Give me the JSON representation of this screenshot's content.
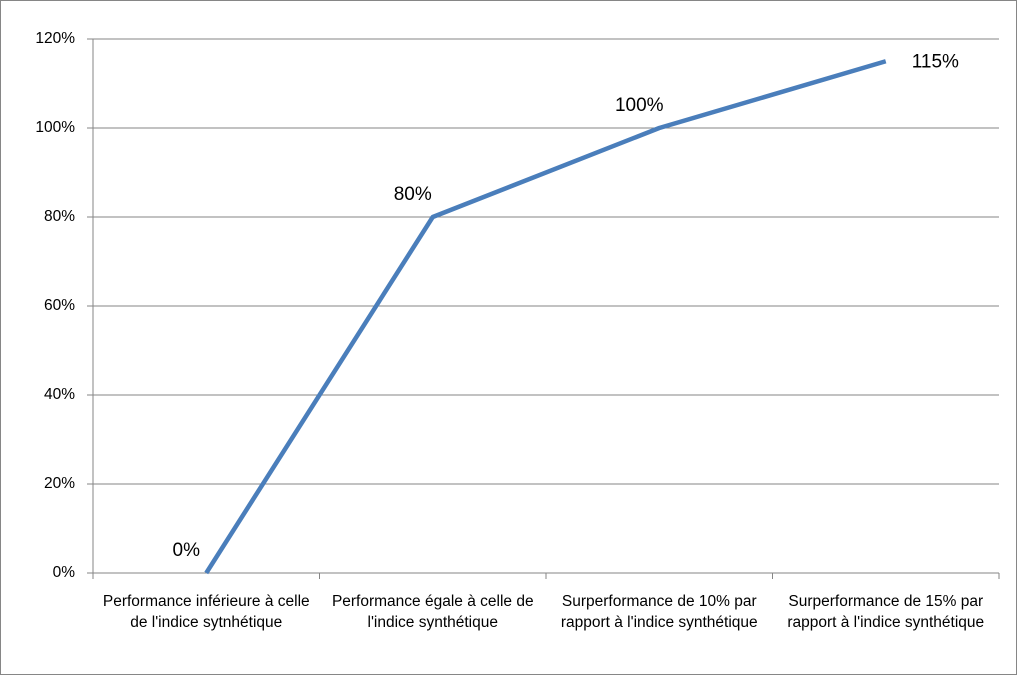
{
  "chart_data": {
    "type": "line",
    "categories": [
      "Performance inférieure à celle de l'indice sytnhétique",
      "Performance égale à celle de l'indice synthétique",
      "Surperformance de 10% par rapport à l'indice synthétique",
      "Surperformance de 15% par rapport à l'indice synthétique"
    ],
    "values": [
      0,
      80,
      100,
      115
    ],
    "value_labels": [
      "0%",
      "80%",
      "100%",
      "115%"
    ],
    "color": "#4a7ebb",
    "ylim": [
      0,
      120
    ],
    "yticks": [
      {
        "value": 0,
        "label": "0%"
      },
      {
        "value": 20,
        "label": "20%"
      },
      {
        "value": 40,
        "label": "40%"
      },
      {
        "value": 60,
        "label": "60%"
      },
      {
        "value": 80,
        "label": "80%"
      },
      {
        "value": 100,
        "label": "100%"
      },
      {
        "value": 120,
        "label": "120%"
      }
    ],
    "grid": true
  }
}
